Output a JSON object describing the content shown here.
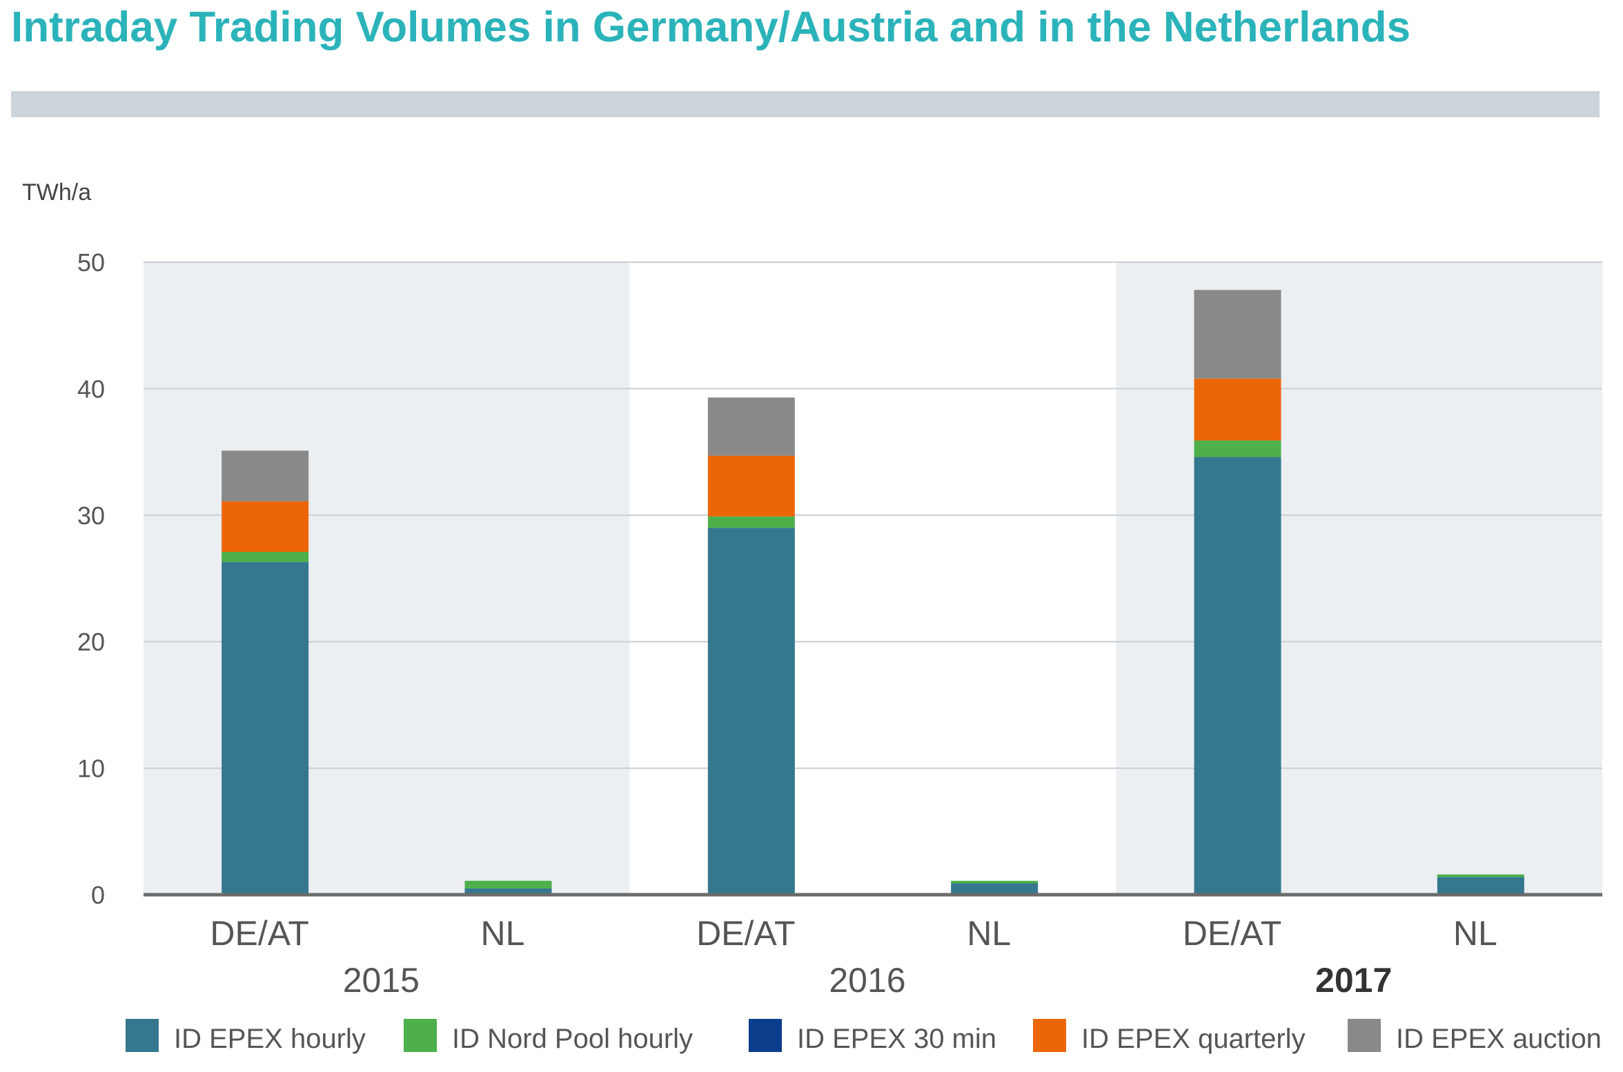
{
  "title": "Intraday Trading Volumes in Germany/Austria and in the Netherlands",
  "chart_data": {
    "type": "bar",
    "stacked": true,
    "title": "Intraday Trading Volumes in Germany/Austria and in the Netherlands",
    "ylabel": "TWh/a",
    "xlabel": "",
    "ylim": [
      0,
      50
    ],
    "yticks": [
      0,
      10,
      20,
      30,
      40,
      50
    ],
    "grid": true,
    "legend_position": "bottom",
    "groups": [
      {
        "label": "2015",
        "bold": false,
        "shaded": true,
        "categories": [
          "DE/AT",
          "NL"
        ]
      },
      {
        "label": "2016",
        "bold": false,
        "shaded": false,
        "categories": [
          "DE/AT",
          "NL"
        ]
      },
      {
        "label": "2017",
        "bold": true,
        "shaded": true,
        "categories": [
          "DE/AT",
          "NL"
        ]
      }
    ],
    "categories": [
      "DE/AT",
      "NL",
      "DE/AT",
      "NL",
      "DE/AT",
      "NL"
    ],
    "series": [
      {
        "name": "ID EPEX hourly",
        "color": "#34778f",
        "values": [
          26.3,
          0.5,
          29.0,
          0.9,
          34.6,
          1.4
        ]
      },
      {
        "name": "ID Nord Pool hourly",
        "color": "#4db04a",
        "values": [
          0.8,
          0.6,
          0.9,
          0.2,
          1.3,
          0.2
        ]
      },
      {
        "name": "ID EPEX 30 min",
        "color": "#0a3e8c",
        "values": [
          0.0,
          0.0,
          0.0,
          0.0,
          0.0,
          0.0
        ]
      },
      {
        "name": "ID EPEX quarterly",
        "color": "#ec6608",
        "values": [
          4.0,
          0.0,
          4.8,
          0.0,
          4.9,
          0.0
        ]
      },
      {
        "name": "ID EPEX auction",
        "color": "#898989",
        "values": [
          4.0,
          0.0,
          4.6,
          0.0,
          7.0,
          0.0
        ]
      }
    ]
  }
}
